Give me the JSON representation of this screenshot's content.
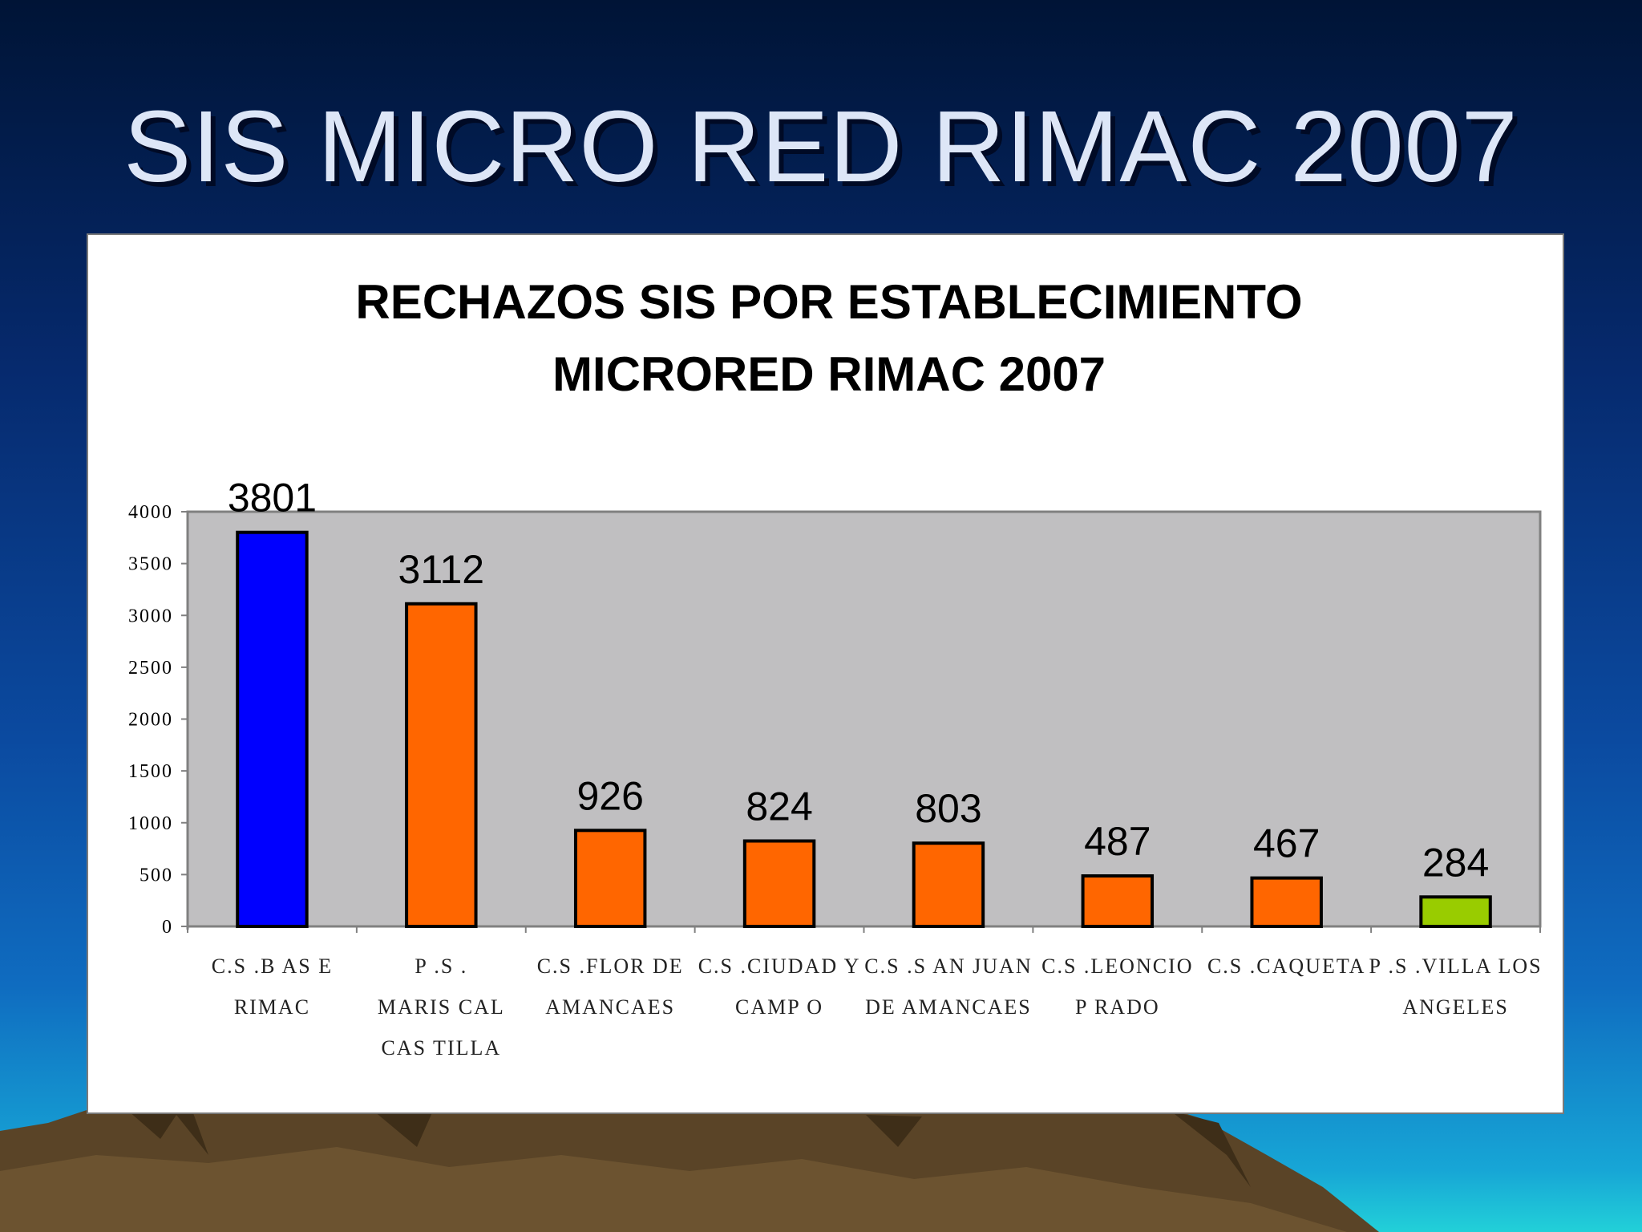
{
  "slide": {
    "title": "SIS MICRO RED RIMAC 2007"
  },
  "colors": {
    "plot_background": "#c0bfc1",
    "bar_highlight": "#0000ff",
    "bar_default": "#ff6600",
    "bar_last": "#99cc00"
  },
  "chart_data": {
    "type": "bar",
    "title": [
      "RECHAZOS SIS POR ESTABLECIMIENTO",
      "MICRORED RIMAC 2007"
    ],
    "categories": [
      [
        "C.S .B AS E",
        "RIMAC"
      ],
      [
        "P .S .",
        "MARIS CAL",
        "CAS TILLA"
      ],
      [
        "C.S .FLOR DE",
        "AMANCAES"
      ],
      [
        "C.S .CIUDAD Y",
        "CAMP O"
      ],
      [
        "C.S .S AN JUAN",
        "DE AMANCAES"
      ],
      [
        "C.S .LEONCIO",
        "P RADO"
      ],
      [
        "C.S .CAQUETA"
      ],
      [
        "P .S .VILLA LOS",
        "ANGELES"
      ]
    ],
    "values": [
      3801,
      3112,
      926,
      824,
      803,
      487,
      467,
      284
    ],
    "data_labels": [
      "3801",
      "3112",
      "926",
      "824",
      "803",
      "487",
      "467",
      "284"
    ],
    "bar_colors": [
      "#0000ff",
      "#ff6600",
      "#ff6600",
      "#ff6600",
      "#ff6600",
      "#ff6600",
      "#ff6600",
      "#99cc00"
    ],
    "yticks": [
      "0",
      "500",
      "1000",
      "1500",
      "2000",
      "2500",
      "3000",
      "3500",
      "4000"
    ],
    "ylim": [
      0,
      4000
    ],
    "grid": false,
    "legend": "none"
  }
}
